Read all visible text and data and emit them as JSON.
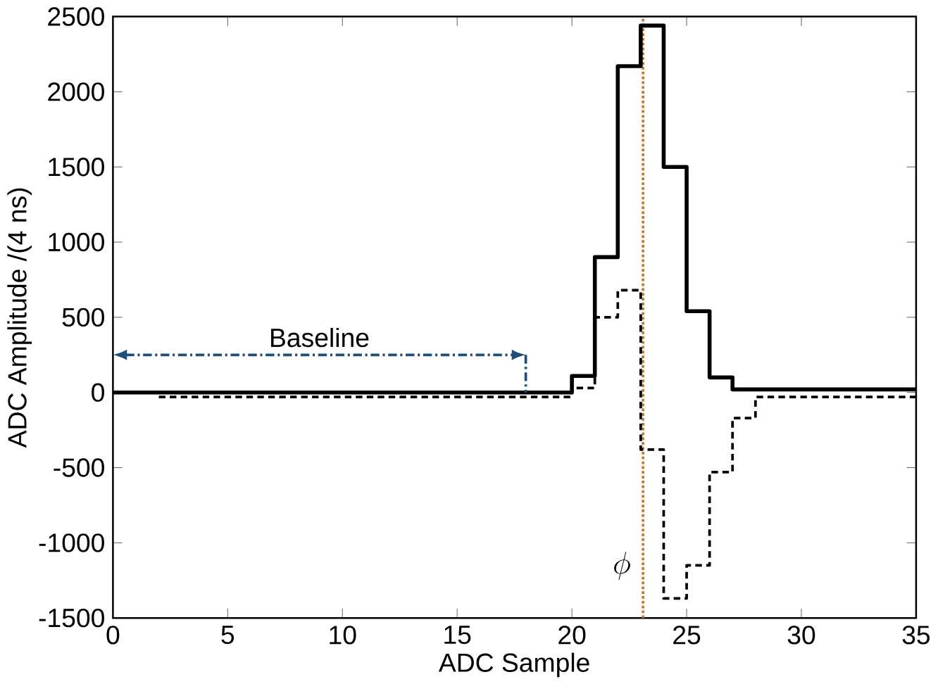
{
  "chart_data": {
    "type": "step",
    "xlabel": "ADC Sample",
    "ylabel": "ADC Amplitude /(4 ns)",
    "xlim": [
      0,
      35
    ],
    "ylim": [
      -1500,
      2500
    ],
    "xticks": [
      0,
      5,
      10,
      15,
      20,
      25,
      30,
      35
    ],
    "yticks": [
      -1500,
      -1000,
      -500,
      0,
      500,
      1000,
      1500,
      2000,
      2500
    ],
    "grid": false,
    "series": [
      {
        "color": "#000000",
        "line_style": "solid",
        "x": [
          0,
          1,
          2,
          3,
          4,
          5,
          6,
          7,
          8,
          9,
          10,
          11,
          12,
          13,
          14,
          15,
          16,
          17,
          18,
          19,
          20,
          21,
          22,
          23,
          24,
          25,
          26,
          27,
          28,
          29,
          30,
          31,
          32,
          33,
          34,
          35
        ],
        "values": [
          0,
          0,
          0,
          0,
          0,
          0,
          0,
          0,
          0,
          0,
          0,
          0,
          0,
          0,
          0,
          0,
          0,
          0,
          0,
          0,
          110,
          900,
          2170,
          2440,
          1500,
          540,
          100,
          20,
          20,
          20,
          20,
          20,
          20,
          20,
          20,
          20
        ]
      },
      {
        "color": "#000000",
        "line_style": "dashed",
        "x": [
          2,
          3,
          4,
          5,
          6,
          7,
          8,
          9,
          10,
          11,
          12,
          13,
          14,
          15,
          16,
          17,
          18,
          19,
          20,
          21,
          22,
          23,
          24,
          25,
          26,
          27,
          28,
          29,
          30,
          31,
          32,
          33,
          34,
          35
        ],
        "values": [
          -30,
          -30,
          -30,
          -30,
          -30,
          -30,
          -30,
          -30,
          -30,
          -30,
          -30,
          -30,
          -30,
          -30,
          -30,
          -30,
          -30,
          -30,
          30,
          500,
          680,
          -380,
          -1370,
          -1150,
          -530,
          -170,
          -30,
          -30,
          -30,
          -30,
          -30,
          -30,
          -30,
          -30
        ]
      }
    ],
    "ref_lines": [
      {
        "axis": "x",
        "value": 23.1,
        "label": "\\phi",
        "color": "#c8782a",
        "line_style": "dotted"
      }
    ],
    "annotations": [
      "Baseline"
    ]
  }
}
